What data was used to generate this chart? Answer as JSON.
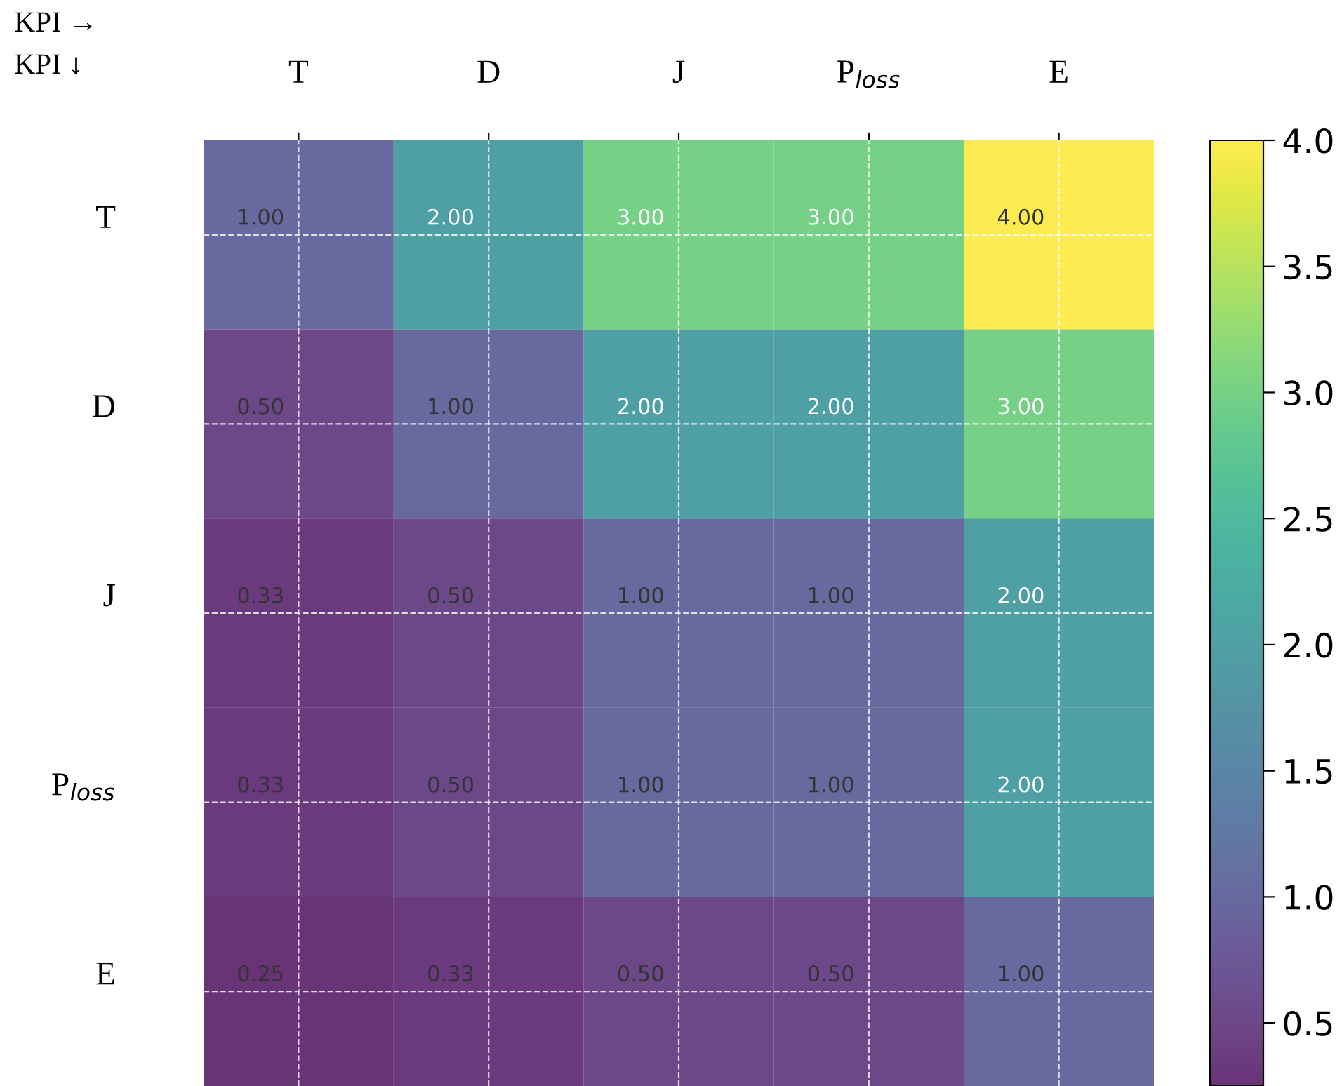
{
  "chart_data": {
    "type": "heatmap",
    "categories": [
      "T",
      "D",
      "J",
      "P$_{loss}$",
      "E"
    ],
    "y_categories": [
      "T",
      "D",
      "J",
      "P$_{loss}$",
      "E"
    ],
    "cells": [
      [
        1.0,
        2.0,
        3.0,
        3.0,
        4.0
      ],
      [
        0.5,
        1.0,
        2.0,
        2.0,
        3.0
      ],
      [
        0.33,
        0.5,
        1.0,
        1.0,
        2.0
      ],
      [
        0.33,
        0.5,
        1.0,
        1.0,
        2.0
      ],
      [
        0.25,
        0.33,
        0.5,
        0.5,
        1.0
      ]
    ],
    "cell_labels": [
      [
        "1.00",
        "2.00",
        "3.00",
        "3.00",
        "4.00"
      ],
      [
        "0.50",
        "1.00",
        "2.00",
        "2.00",
        "3.00"
      ],
      [
        "0.33",
        "0.50",
        "1.00",
        "1.00",
        "2.00"
      ],
      [
        "0.33",
        "0.50",
        "1.00",
        "1.00",
        "2.00"
      ],
      [
        "0.25",
        "0.33",
        "0.50",
        "0.50",
        "1.00"
      ]
    ],
    "clim": [
      0.25,
      4.0
    ],
    "cticks": [
      0.5,
      {
        "value": 1,
        "label": "1.0"
      },
      1.5,
      {
        "value": 2,
        "label": "2.0"
      },
      2.5,
      {
        "value": 3,
        "label": "3.0"
      },
      3.5,
      {
        "value": 4,
        "label": "4.0"
      }
    ],
    "grid": true,
    "annotations": [
      "KPI →",
      "KPI ↓"
    ]
  }
}
